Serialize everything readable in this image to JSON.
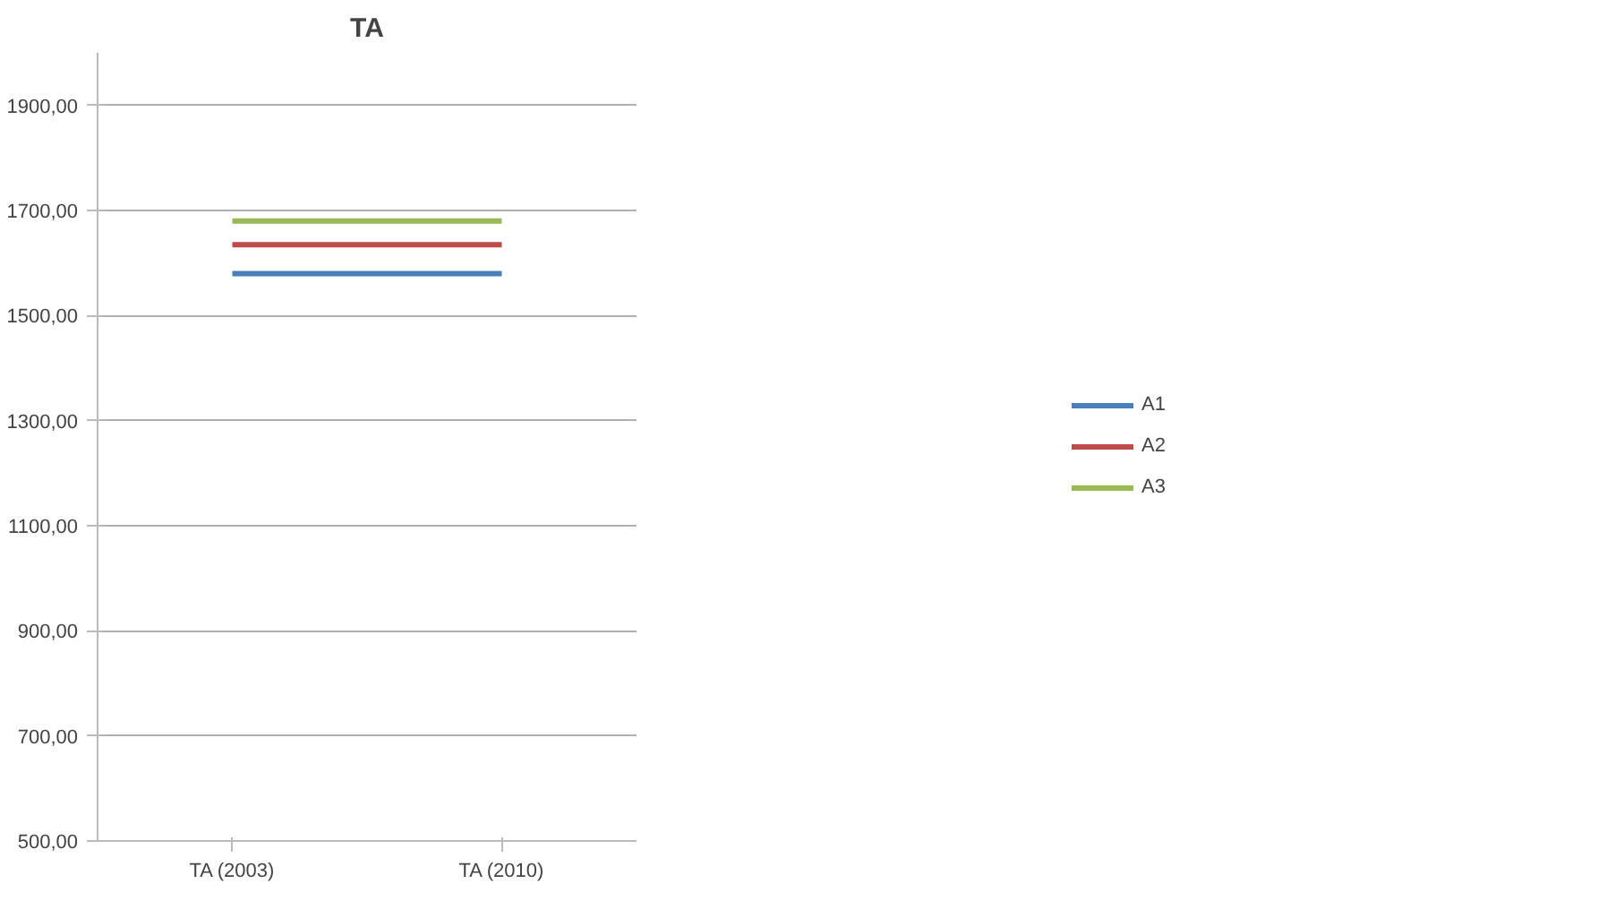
{
  "chart_data": {
    "type": "line",
    "title": "TA",
    "categories": [
      "TA (2003)",
      "TA (2010)"
    ],
    "series": [
      {
        "name": "A1",
        "color": "#4a7ebb",
        "values": [
          1580,
          1580
        ]
      },
      {
        "name": "A2",
        "color": "#be4b48",
        "values": [
          1635,
          1635
        ]
      },
      {
        "name": "A3",
        "color": "#98b954",
        "values": [
          1680,
          1680
        ]
      }
    ],
    "ylim": [
      500,
      2000
    ],
    "yticks": [
      {
        "value": 500,
        "label": "500,00"
      },
      {
        "value": 700,
        "label": "700,00"
      },
      {
        "value": 900,
        "label": "900,00"
      },
      {
        "value": 1100,
        "label": "1100,00"
      },
      {
        "value": 1300,
        "label": "1300,00"
      },
      {
        "value": 1500,
        "label": "1500,00"
      },
      {
        "value": 1700,
        "label": "1700,00"
      },
      {
        "value": 1900,
        "label": "1900,00"
      }
    ],
    "grid": "y",
    "legend": "right",
    "marker": "none",
    "line_style": "solid"
  }
}
